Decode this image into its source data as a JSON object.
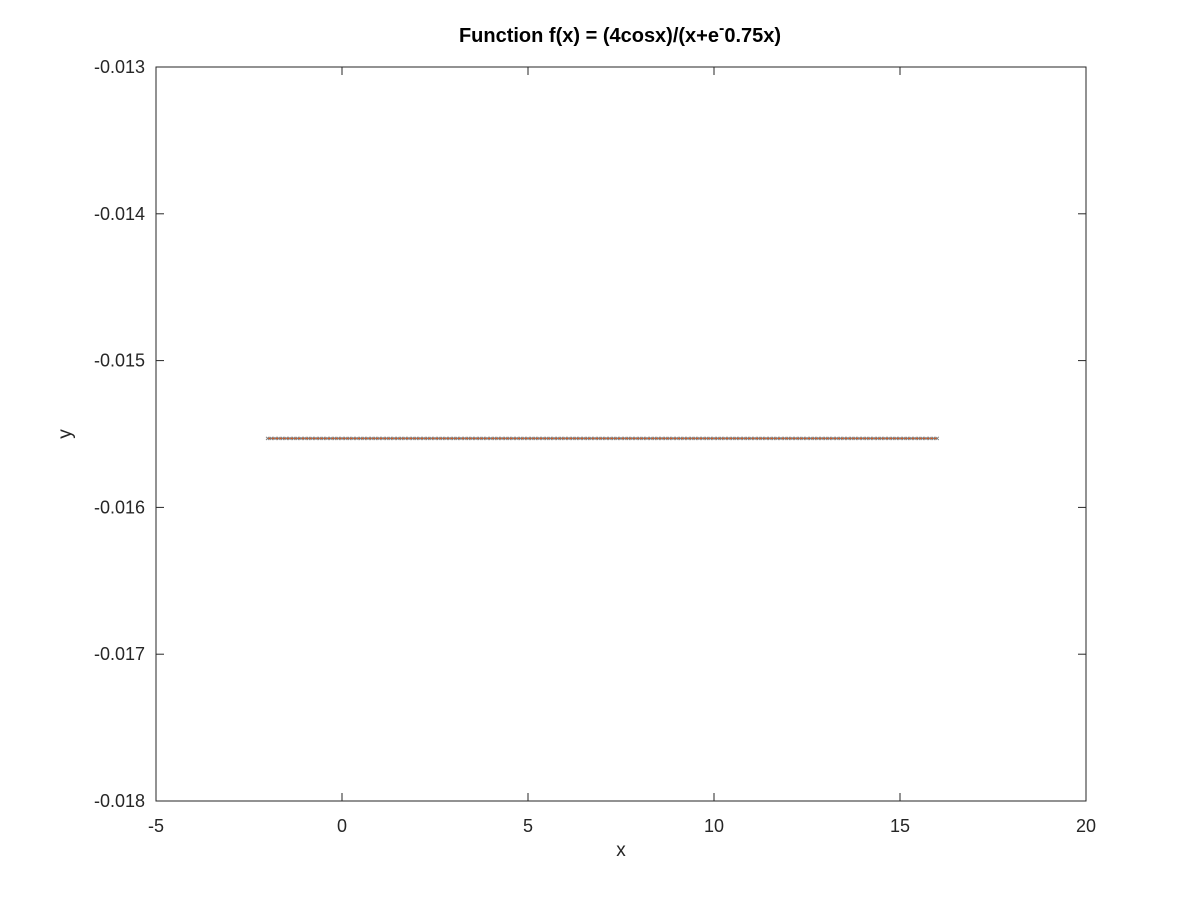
{
  "chart_data": {
    "type": "line",
    "title": {
      "main": "Function f(x) = (4cosx)/(x+e",
      "superscript": "-",
      "tail": "0.75x)"
    },
    "xlabel": "x",
    "ylabel": "y",
    "xlim": [
      -5,
      20
    ],
    "ylim": [
      -0.018,
      -0.013
    ],
    "x_ticks": [
      -5,
      0,
      5,
      10,
      15,
      20
    ],
    "x_tick_labels": [
      "-5",
      "0",
      "5",
      "10",
      "15",
      "20"
    ],
    "y_ticks": [
      -0.018,
      -0.017,
      -0.016,
      -0.015,
      -0.014,
      -0.013
    ],
    "y_tick_labels": [
      "-0.018",
      "-0.017",
      "-0.016",
      "-0.015",
      "-0.014",
      "-0.013"
    ],
    "grid": false,
    "box": true,
    "series": [
      {
        "x_start": -2,
        "x_end": 16,
        "y_constant": -0.01553,
        "sample_count": 181,
        "line_color": "#d95319",
        "marker_color": "#7e7e7e",
        "marker": "x"
      }
    ],
    "colors": {
      "axes": "#262626",
      "title": "#000000",
      "background": "#ffffff"
    }
  }
}
